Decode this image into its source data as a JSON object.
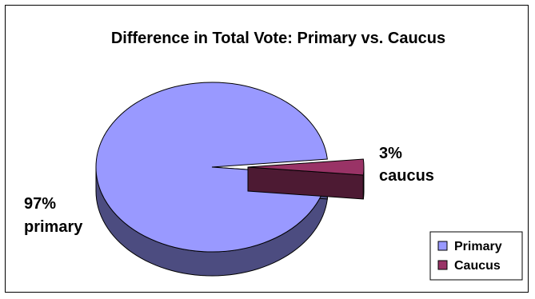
{
  "chart_data": {
    "type": "pie",
    "title": "Difference in Total Vote: Primary vs. Caucus",
    "slices": [
      {
        "name": "Primary",
        "value": 97,
        "percent_label": "97%",
        "category_label": "primary",
        "color": "#9999ff",
        "side_color": "#4c4c80"
      },
      {
        "name": "Caucus",
        "value": 3,
        "percent_label": "3%",
        "category_label": "caucus",
        "color": "#993366",
        "side_color": "#4d1a33"
      }
    ],
    "legend": {
      "position": "bottom-right",
      "entries": [
        "Primary",
        "Caucus"
      ]
    }
  }
}
